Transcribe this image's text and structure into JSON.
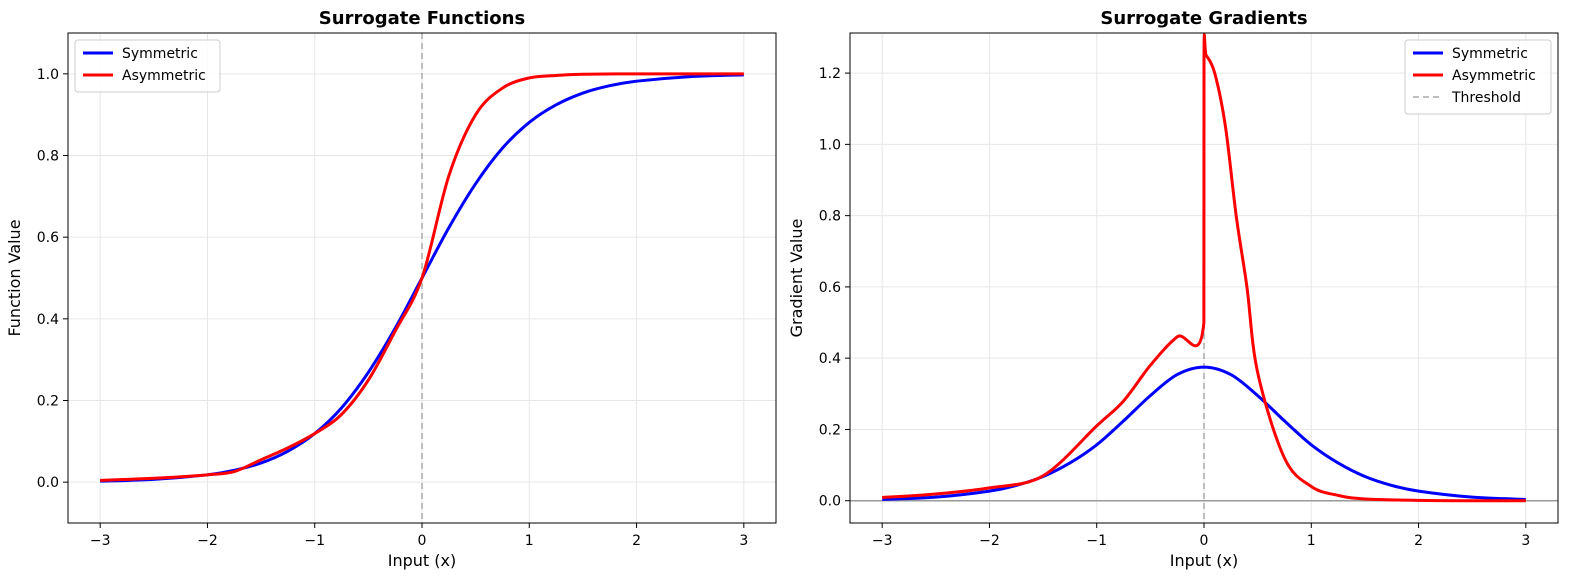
{
  "chart_data": [
    {
      "type": "line",
      "title": "Surrogate Functions",
      "xlabel": "Input (x)",
      "ylabel": "Function Value",
      "xlim": [
        -3.3,
        3.3
      ],
      "ylim": [
        -0.1,
        1.1
      ],
      "xticks": [
        -3,
        -2,
        -1,
        0,
        1,
        2,
        3
      ],
      "xtick_labels": [
        "−3",
        "−2",
        "−1",
        "0",
        "1",
        "2",
        "3"
      ],
      "yticks": [
        0.0,
        0.2,
        0.4,
        0.6,
        0.8,
        1.0
      ],
      "ytick_labels": [
        "0.0",
        "0.2",
        "0.4",
        "0.6",
        "0.8",
        "1.0"
      ],
      "grid": true,
      "legend_position": "upper-left",
      "threshold_x": 0,
      "series": [
        {
          "name": "Symmetric",
          "color": "#0000ff",
          "x": [
            -3,
            -2.5,
            -2,
            -1.75,
            -1.5,
            -1.25,
            -1,
            -0.75,
            -0.5,
            -0.25,
            0,
            0.25,
            0.5,
            0.75,
            1,
            1.25,
            1.5,
            1.75,
            2,
            2.5,
            3
          ],
          "y": [
            0.0025,
            0.0067,
            0.018,
            0.029,
            0.047,
            0.076,
            0.119,
            0.182,
            0.269,
            0.377,
            0.5,
            0.623,
            0.731,
            0.818,
            0.881,
            0.924,
            0.953,
            0.971,
            0.982,
            0.9933,
            0.9975
          ]
        },
        {
          "name": "Asymmetric",
          "color": "#ff0000",
          "x": [
            -3,
            -2.5,
            -2,
            -1.75,
            -1.5,
            -1.25,
            -1,
            -0.75,
            -0.5,
            -0.25,
            0,
            0.25,
            0.5,
            0.75,
            1,
            1.25,
            1.5,
            2,
            2.5,
            3
          ],
          "y": [
            0.0045,
            0.0095,
            0.018,
            0.026,
            0.055,
            0.084,
            0.119,
            0.166,
            0.25,
            0.37,
            0.5,
            0.75,
            0.9,
            0.965,
            0.99,
            0.996,
            0.999,
            1.0,
            1.0,
            1.0
          ]
        }
      ]
    },
    {
      "type": "line",
      "title": "Surrogate Gradients",
      "xlabel": "Input (x)",
      "ylabel": "Gradient Value",
      "xlim": [
        -3.3,
        3.3
      ],
      "ylim": [
        -0.0625,
        1.3125
      ],
      "xticks": [
        -3,
        -2,
        -1,
        0,
        1,
        2,
        3
      ],
      "xtick_labels": [
        "−3",
        "−2",
        "−1",
        "0",
        "1",
        "2",
        "3"
      ],
      "yticks": [
        0.0,
        0.2,
        0.4,
        0.6,
        0.8,
        1.0,
        1.2
      ],
      "ytick_labels": [
        "0.0",
        "0.2",
        "0.4",
        "0.6",
        "0.8",
        "1.0",
        "1.2"
      ],
      "grid": true,
      "legend_position": "upper-right",
      "threshold_x": 0,
      "zero_line_y": 0,
      "series": [
        {
          "name": "Symmetric",
          "color": "#0000ff",
          "x": [
            -3,
            -2.5,
            -2,
            -1.75,
            -1.5,
            -1.25,
            -1,
            -0.75,
            -0.5,
            -0.25,
            0,
            0.25,
            0.5,
            0.75,
            1,
            1.25,
            1.5,
            1.75,
            2,
            2.5,
            3
          ],
          "y": [
            0.0037,
            0.01,
            0.027,
            0.043,
            0.068,
            0.106,
            0.157,
            0.224,
            0.295,
            0.354,
            0.375,
            0.354,
            0.295,
            0.224,
            0.157,
            0.106,
            0.068,
            0.043,
            0.027,
            0.01,
            0.0037
          ]
        },
        {
          "name": "Asymmetric",
          "color": "#ff0000",
          "x": [
            -3,
            -2.5,
            -2,
            -1.5,
            -1,
            -0.75,
            -0.5,
            -0.25,
            -0.001,
            0,
            0.02,
            0.1,
            0.2,
            0.3,
            0.4,
            0.5,
            0.75,
            1,
            1.25,
            1.5,
            2,
            2.5,
            3
          ],
          "y": [
            0.009,
            0.019,
            0.036,
            0.07,
            0.21,
            0.28,
            0.38,
            0.46,
            0.5,
            1.25,
            1.25,
            1.2,
            1.05,
            0.8,
            0.6,
            0.36,
            0.12,
            0.04,
            0.015,
            0.005,
            0.001,
            0.0,
            0.0
          ]
        },
        {
          "name": "Threshold",
          "color": "#aaaaaa",
          "style": "dashed"
        }
      ]
    }
  ]
}
